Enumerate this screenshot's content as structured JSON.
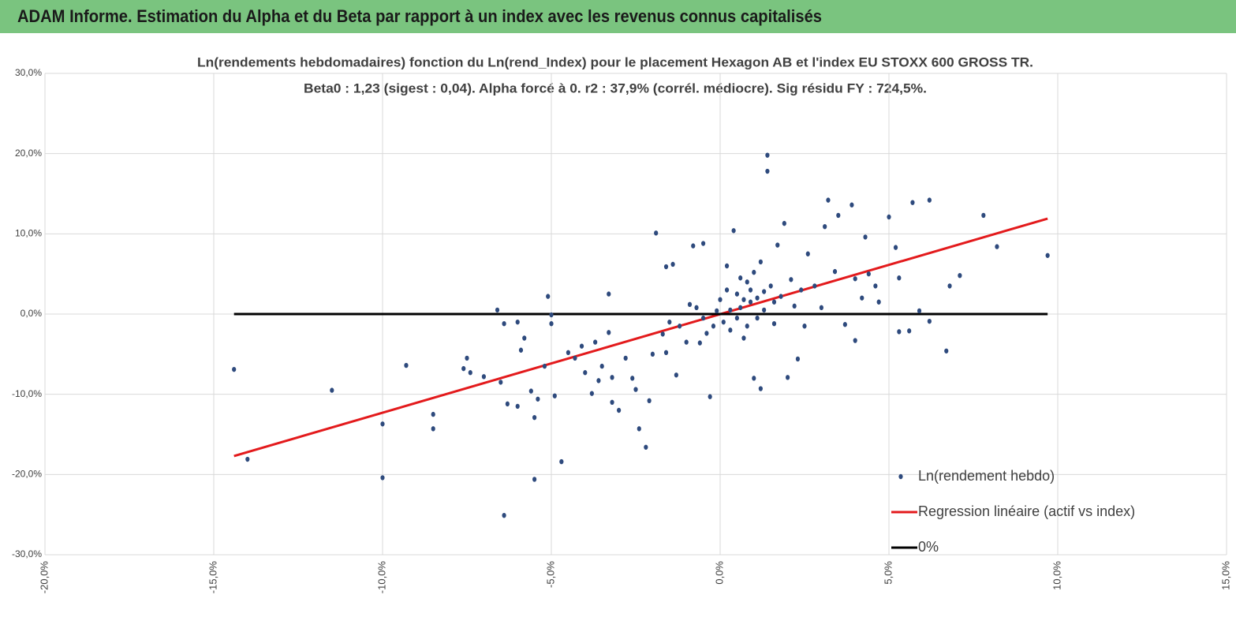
{
  "header": {
    "title": "ADAM Informe. Estimation du Alpha et du Beta par rapport à un index avec les revenus connus capitalisés"
  },
  "chart_data": {
    "type": "scatter",
    "title": "Ln(rendements hebdomadaires) fonction du Ln(rend_Index) pour le placement Hexagon AB et l'index EU STOXX 600 GROSS TR.",
    "subtitle": "Beta0 : 1,23  (sigest : 0,04). Alpha forcé à 0. r2 : 37,9% (corrél. médiocre). Sig résidu FY : 724,5%.",
    "xlim": [
      -20,
      15
    ],
    "xticks": [
      {
        "value": -20,
        "label": "-20,0%"
      },
      {
        "value": -15,
        "label": "-15,0%"
      },
      {
        "value": -10,
        "label": "-10,0%"
      },
      {
        "value": -5,
        "label": "-5,0%"
      },
      {
        "value": 0,
        "label": "0,0%"
      },
      {
        "value": 5,
        "label": "5,0%"
      },
      {
        "value": 10,
        "label": "10,0%"
      },
      {
        "value": 15,
        "label": "15,0%"
      }
    ],
    "ylim": [
      -30,
      30
    ],
    "yticks": [
      {
        "value": -30,
        "label": "-30,0%"
      },
      {
        "value": -20,
        "label": "-20,0%"
      },
      {
        "value": -10,
        "label": "-10,0%"
      },
      {
        "value": 0,
        "label": "0,0%"
      },
      {
        "value": 10,
        "label": "10,0%"
      },
      {
        "value": 20,
        "label": "20,0%"
      },
      {
        "value": 30,
        "label": "30,0%"
      }
    ],
    "grid": true,
    "legend": "bottom-right",
    "series": [
      {
        "name": "Ln(rendement hebdo)",
        "color": "#2e4a7d",
        "style": "points",
        "x": [
          -14.4,
          -14,
          -11.5,
          -10,
          -10,
          -9.3,
          -8.5,
          -8.5,
          -7.5,
          -7.6,
          -7.4,
          -7,
          -6.6,
          -6.5,
          -6.4,
          -6.4,
          -6.3,
          -6,
          -6,
          -5.9,
          -5.8,
          -5.6,
          -5.5,
          -5.5,
          -5.4,
          -5.2,
          -5.1,
          -5,
          -5,
          -4.9,
          -4.7,
          -4.5,
          -4.3,
          -4.1,
          -4,
          -3.8,
          -3.7,
          -3.6,
          -3.5,
          -3.3,
          -3.2,
          -3.2,
          -3.3,
          -3,
          -2.8,
          -2.6,
          -2.5,
          -2.4,
          -2.2,
          -2.1,
          -2,
          -1.9,
          -1.7,
          -1.6,
          -1.6,
          -1.4,
          -1.3,
          -1.2,
          -1,
          -0.9,
          -0.8,
          -0.6,
          -0.5,
          -0.4,
          -0.3,
          -0.2,
          -0.1,
          0,
          0.1,
          0.2,
          0.2,
          0.3,
          0.4,
          0.5,
          0.6,
          0.7,
          0.8,
          0.9,
          1,
          1,
          1.1,
          1.2,
          1.3,
          1.4,
          1.4,
          1.5,
          1.6,
          1.7,
          1.8,
          1.9,
          2,
          2.1,
          2.2,
          2.3,
          2.5,
          2.6,
          2.8,
          3,
          3.1,
          3.2,
          3.4,
          3.5,
          3.7,
          3.9,
          4,
          4,
          4.2,
          4.3,
          4.4,
          4.6,
          4.7,
          5,
          5.2,
          5.3,
          5.3,
          5.6,
          5.7,
          5.9,
          6.2,
          6.2,
          6.7,
          6.8,
          7.1,
          7.8,
          8.2,
          9.7,
          0.3,
          0.5,
          0.7,
          0.9,
          1.1,
          1.3,
          0.6,
          -0.5,
          -0.7,
          1.6,
          2.4,
          -1.5,
          0.8,
          1.2
        ],
        "values": [
          -6.9,
          -18.1,
          -9.5,
          -20.4,
          -13.7,
          -6.4,
          -14.3,
          -12.5,
          -5.5,
          -6.8,
          -7.3,
          -7.8,
          0.5,
          -8.5,
          -1.2,
          -25.1,
          -11.2,
          -11.5,
          -1,
          -4.5,
          -3,
          -9.6,
          -20.6,
          -12.9,
          -10.6,
          -6.5,
          2.2,
          -0.1,
          -1.2,
          -10.2,
          -18.4,
          -4.8,
          -5.5,
          -4,
          -7.3,
          -9.9,
          -3.5,
          -8.3,
          -6.5,
          -2.3,
          -7.9,
          -11,
          2.5,
          -12,
          -5.5,
          -8,
          -9.4,
          -14.3,
          -16.6,
          -10.8,
          -5,
          10.1,
          -2.5,
          5.9,
          -4.8,
          6.2,
          -7.6,
          -1.5,
          -3.5,
          1.2,
          8.5,
          -3.6,
          8.8,
          -2.4,
          -10.3,
          -1.5,
          0.4,
          1.8,
          -1,
          3,
          6,
          -2,
          10.4,
          2.5,
          0.8,
          -3,
          4,
          1.5,
          -8,
          5.2,
          2,
          -9.3,
          0.5,
          19.8,
          17.8,
          3.5,
          -1.2,
          8.6,
          2.2,
          11.3,
          -7.9,
          4.3,
          1,
          -5.6,
          -1.5,
          7.5,
          3.5,
          0.8,
          10.9,
          14.2,
          5.3,
          12.3,
          -1.3,
          13.6,
          4.4,
          -3.3,
          2,
          9.6,
          5,
          3.5,
          1.5,
          12.1,
          8.3,
          -2.2,
          4.5,
          -2.1,
          13.9,
          0.4,
          14.2,
          -0.9,
          -4.6,
          3.5,
          4.8,
          12.3,
          8.4,
          7.3,
          0.5,
          -0.5,
          1.8,
          3,
          -0.5,
          2.8,
          4.5,
          -0.5,
          0.8,
          1.5,
          3,
          -1,
          -1.5,
          6.5
        ]
      },
      {
        "name": "Regression linéaire (actif vs index)",
        "color": "#e31a1c",
        "style": "line",
        "x": [
          -14.4,
          9.7
        ],
        "values": [
          -17.7,
          11.9
        ]
      },
      {
        "name": "0%",
        "color": "#000000",
        "style": "line",
        "x": [
          -14.4,
          9.7
        ],
        "values": [
          0,
          0
        ]
      }
    ]
  }
}
